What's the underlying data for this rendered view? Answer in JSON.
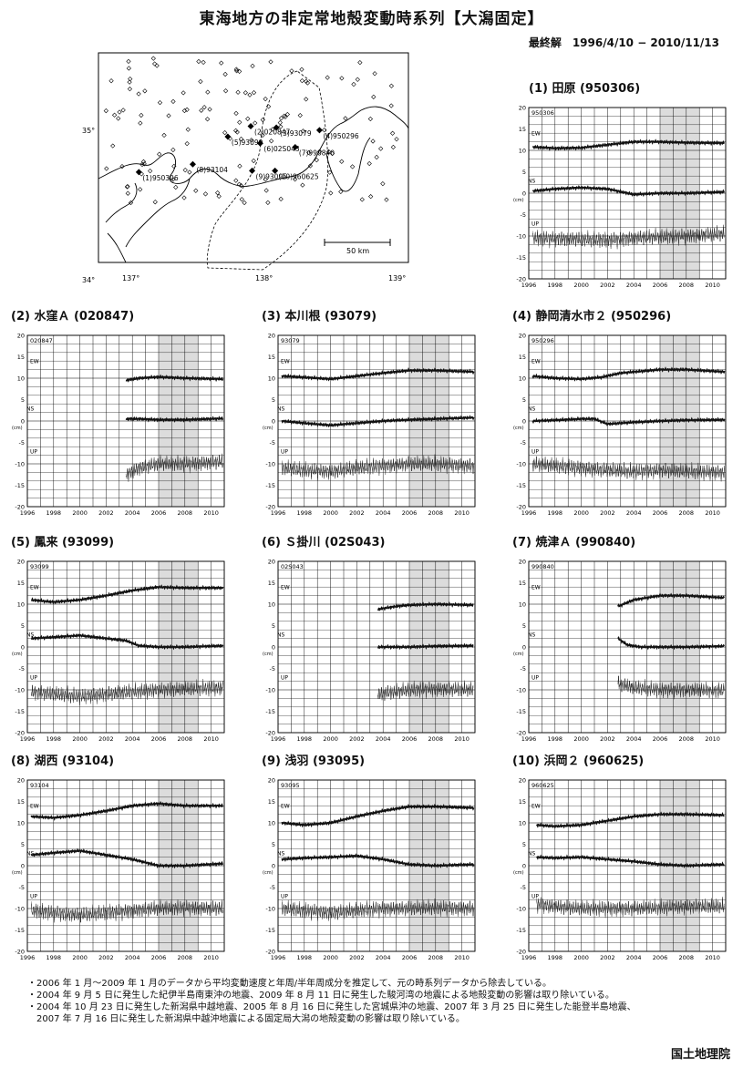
{
  "header": {
    "title": "東海地方の非定常地殻変動時系列【大潟固定】",
    "subtitle": "最終解　1996/4/10 − 2010/11/13"
  },
  "map": {
    "lat_labels": [
      "35°",
      "34°"
    ],
    "lon_labels": [
      "137°",
      "138°",
      "139°"
    ],
    "scale_label": "50 km",
    "stations": [
      {
        "label": "(1)950306",
        "lon": 137.1,
        "lat": 34.69
      },
      {
        "label": "(2)020847",
        "lon": 137.93,
        "lat": 35.04
      },
      {
        "label": "(3)93079",
        "lon": 138.12,
        "lat": 35.03
      },
      {
        "label": "(4)950296",
        "lon": 138.44,
        "lat": 35.01
      },
      {
        "label": "(5)93099",
        "lon": 137.76,
        "lat": 34.96
      },
      {
        "label": "(6)02S043",
        "lon": 138.0,
        "lat": 34.91
      },
      {
        "label": "(7)990840",
        "lon": 138.26,
        "lat": 34.88
      },
      {
        "label": "(8)93104",
        "lon": 137.5,
        "lat": 34.75
      },
      {
        "label": "(9)93095",
        "lon": 137.94,
        "lat": 34.7
      },
      {
        "label": "(10)960625",
        "lon": 138.11,
        "lat": 34.7
      }
    ]
  },
  "axis": {
    "ytick_labels": [
      "20",
      "15",
      "10",
      "5",
      "0",
      "-5",
      "-10",
      "-15",
      "-20"
    ],
    "xtick_labels": [
      "1996",
      "1998",
      "2000",
      "2002",
      "2004",
      "2006",
      "2008",
      "2010"
    ],
    "unit": "(cm)",
    "comp_labels": [
      "EW",
      "NS",
      "UP"
    ]
  },
  "chart_data": [
    {
      "type": "line",
      "title": "(1) 田原 (950306)",
      "station": "950306",
      "start": 1996.3,
      "xlim": [
        1996,
        2011
      ],
      "ylim": [
        -20,
        20
      ],
      "shaded": [
        2006,
        2009
      ],
      "series": [
        {
          "name": "EW",
          "x": [
            1996.3,
            1998,
            2000,
            2002,
            2004,
            2006,
            2008,
            2010.9
          ],
          "values": [
            10.8,
            10.5,
            10.6,
            11.3,
            12.0,
            12.0,
            11.8,
            11.7
          ]
        },
        {
          "name": "NS",
          "x": [
            1996.3,
            1998,
            2000,
            2002,
            2004,
            2006,
            2008,
            2010.9
          ],
          "values": [
            0.5,
            1.0,
            1.3,
            1.0,
            -0.3,
            0.0,
            0.0,
            0.3
          ]
        },
        {
          "name": "UP",
          "x": [
            1996.3,
            1998,
            2000,
            2002,
            2004,
            2006,
            2008,
            2010.9
          ],
          "values": [
            -10.5,
            -10.6,
            -10.8,
            -11.0,
            -10.5,
            -10.2,
            -10.0,
            -9.5
          ]
        }
      ]
    },
    {
      "type": "line",
      "title": "(2) 水窪Ａ (020847)",
      "station": "020847",
      "start": 2003.5,
      "xlim": [
        1996,
        2011
      ],
      "ylim": [
        -20,
        20
      ],
      "shaded": [
        2006,
        2009
      ],
      "series": [
        {
          "name": "EW",
          "x": [
            2003.5,
            2004.5,
            2006,
            2008,
            2010.9
          ],
          "values": [
            9.5,
            10.0,
            10.3,
            10.0,
            9.8
          ]
        },
        {
          "name": "NS",
          "x": [
            2003.5,
            2004.5,
            2006,
            2008,
            2010.9
          ],
          "values": [
            0.5,
            0.5,
            0.3,
            0.3,
            0.6
          ]
        },
        {
          "name": "UP",
          "x": [
            2003.5,
            2004.5,
            2006,
            2008,
            2010.9
          ],
          "values": [
            -12.5,
            -11.0,
            -10.0,
            -10.0,
            -9.5
          ]
        }
      ]
    },
    {
      "type": "line",
      "title": "(3) 本川根 (93079)",
      "station": "93079",
      "start": 1996.3,
      "xlim": [
        1996,
        2011
      ],
      "ylim": [
        -20,
        20
      ],
      "shaded": [
        2006,
        2009
      ],
      "series": [
        {
          "name": "EW",
          "x": [
            1996.3,
            1998,
            2000,
            2002,
            2004,
            2006,
            2008,
            2010.9
          ],
          "values": [
            10.5,
            10.2,
            9.8,
            10.5,
            11.2,
            11.8,
            11.8,
            11.5
          ]
        },
        {
          "name": "NS",
          "x": [
            1996.3,
            1998,
            2000,
            2002,
            2004,
            2006,
            2008,
            2010.9
          ],
          "values": [
            0.0,
            -0.5,
            -1.0,
            -0.5,
            0.0,
            0.3,
            0.5,
            0.8
          ]
        },
        {
          "name": "UP",
          "x": [
            1996.3,
            1998,
            2000,
            2002,
            2004,
            2006,
            2008,
            2010.9
          ],
          "values": [
            -11.0,
            -11.5,
            -11.8,
            -11.0,
            -10.5,
            -10.0,
            -10.0,
            -10.5
          ]
        }
      ]
    },
    {
      "type": "line",
      "title": "(4) 静岡清水市２ (950296)",
      "station": "950296",
      "start": 1996.3,
      "xlim": [
        1996,
        2011
      ],
      "ylim": [
        -20,
        20
      ],
      "shaded": [
        2006,
        2009
      ],
      "series": [
        {
          "name": "EW",
          "x": [
            1996.3,
            1998,
            2000,
            2001.5,
            2003,
            2006,
            2008,
            2010.9
          ],
          "values": [
            10.5,
            10.0,
            9.8,
            10.2,
            11.2,
            12.0,
            12.0,
            11.5
          ]
        },
        {
          "name": "NS",
          "x": [
            1996.3,
            1998,
            2000,
            2001,
            2002,
            2004,
            2006,
            2008,
            2010.9
          ],
          "values": [
            0.0,
            0.2,
            0.5,
            0.5,
            -0.7,
            -0.3,
            0.0,
            0.2,
            0.3
          ]
        },
        {
          "name": "UP",
          "x": [
            1996.3,
            1998,
            2000,
            2002,
            2004,
            2006,
            2008,
            2010.9
          ],
          "values": [
            -10.0,
            -10.5,
            -11.0,
            -11.5,
            -11.8,
            -11.5,
            -11.8,
            -12.0
          ]
        }
      ]
    },
    {
      "type": "line",
      "title": "(5) 鳳来 (93099)",
      "station": "93099",
      "start": 1996.3,
      "xlim": [
        1996,
        2011
      ],
      "ylim": [
        -20,
        20
      ],
      "shaded": [
        2006,
        2009
      ],
      "series": [
        {
          "name": "EW",
          "x": [
            1996.3,
            1998,
            2000,
            2002,
            2004,
            2006,
            2008,
            2010.9
          ],
          "values": [
            11.0,
            10.5,
            11.0,
            12.0,
            13.2,
            14.0,
            13.8,
            13.8
          ]
        },
        {
          "name": "NS",
          "x": [
            1996.3,
            1998,
            2000,
            2002,
            2003.5,
            2004.5,
            2006,
            2008,
            2010.9
          ],
          "values": [
            2.0,
            2.3,
            2.7,
            2.0,
            1.5,
            0.3,
            0.0,
            0.0,
            0.3
          ]
        },
        {
          "name": "UP",
          "x": [
            1996.3,
            1998,
            2000,
            2002,
            2004,
            2006,
            2008,
            2010.9
          ],
          "values": [
            -10.5,
            -11.0,
            -11.5,
            -11.0,
            -10.5,
            -10.0,
            -9.8,
            -9.5
          ]
        }
      ]
    },
    {
      "type": "line",
      "title": "(6) Ｓ掛川 (02S043)",
      "station": "02S043",
      "start": 2003.6,
      "xlim": [
        1996,
        2011
      ],
      "ylim": [
        -20,
        20
      ],
      "shaded": [
        2006,
        2009
      ],
      "series": [
        {
          "name": "EW",
          "x": [
            2003.6,
            2005,
            2006,
            2008,
            2010.9
          ],
          "values": [
            8.8,
            9.5,
            9.8,
            10.0,
            9.8
          ]
        },
        {
          "name": "NS",
          "x": [
            2003.6,
            2005,
            2006,
            2008,
            2010.9
          ],
          "values": [
            0.0,
            0.0,
            0.0,
            0.2,
            0.3
          ]
        },
        {
          "name": "UP",
          "x": [
            2003.6,
            2005,
            2006,
            2008,
            2010.9
          ],
          "values": [
            -11.0,
            -10.5,
            -10.0,
            -9.8,
            -10.0
          ]
        }
      ]
    },
    {
      "type": "line",
      "title": "(7) 焼津Ａ (990840)",
      "station": "990840",
      "start": 2002.8,
      "xlim": [
        1996,
        2011
      ],
      "ylim": [
        -20,
        20
      ],
      "shaded": [
        2006,
        2009
      ],
      "series": [
        {
          "name": "EW",
          "x": [
            2002.8,
            2004,
            2006,
            2008,
            2010.9
          ],
          "values": [
            9.5,
            11.0,
            12.0,
            12.0,
            11.5
          ]
        },
        {
          "name": "NS",
          "x": [
            2002.8,
            2003.5,
            2004.5,
            2006,
            2008,
            2010.9
          ],
          "values": [
            2.0,
            0.5,
            0.0,
            0.0,
            0.0,
            0.2
          ]
        },
        {
          "name": "UP",
          "x": [
            2002.8,
            2004,
            2006,
            2008,
            2010.9
          ],
          "values": [
            -8.5,
            -9.5,
            -10.0,
            -10.0,
            -10.2
          ]
        }
      ]
    },
    {
      "type": "line",
      "title": "(8) 湖西 (93104)",
      "station": "93104",
      "start": 1996.3,
      "xlim": [
        1996,
        2011
      ],
      "ylim": [
        -20,
        20
      ],
      "shaded": [
        2006,
        2009
      ],
      "series": [
        {
          "name": "EW",
          "x": [
            1996.3,
            1998,
            2000,
            2002,
            2004,
            2006,
            2008,
            2010.9
          ],
          "values": [
            11.5,
            11.2,
            11.8,
            12.8,
            14.0,
            14.5,
            14.0,
            14.0
          ]
        },
        {
          "name": "NS",
          "x": [
            1996.3,
            1998,
            2000,
            2002,
            2004,
            2006,
            2008,
            2010.9
          ],
          "values": [
            2.5,
            3.0,
            3.5,
            2.5,
            1.5,
            0.0,
            0.0,
            0.5
          ]
        },
        {
          "name": "UP",
          "x": [
            1996.3,
            1998,
            2000,
            2002,
            2004,
            2006,
            2008,
            2010.9
          ],
          "values": [
            -10.5,
            -11.0,
            -11.5,
            -11.0,
            -10.5,
            -10.0,
            -9.8,
            -10.0
          ]
        }
      ]
    },
    {
      "type": "line",
      "title": "(9) 浅羽 (93095)",
      "station": "93095",
      "start": 1996.3,
      "xlim": [
        1996,
        2011
      ],
      "ylim": [
        -20,
        20
      ],
      "shaded": [
        2006,
        2009
      ],
      "series": [
        {
          "name": "EW",
          "x": [
            1996.3,
            1998,
            2000,
            2002,
            2004,
            2006,
            2008,
            2010.9
          ],
          "values": [
            10.0,
            9.5,
            10.0,
            11.5,
            12.8,
            13.8,
            13.8,
            13.5
          ]
        },
        {
          "name": "NS",
          "x": [
            1996.3,
            1998,
            2000,
            2002,
            2004,
            2006,
            2008,
            2010.9
          ],
          "values": [
            1.5,
            1.8,
            2.0,
            2.3,
            1.5,
            0.3,
            0.0,
            0.3
          ]
        },
        {
          "name": "UP",
          "x": [
            1996.3,
            1998,
            2000,
            2002,
            2004,
            2006,
            2008,
            2010.9
          ],
          "values": [
            -10.0,
            -10.5,
            -11.0,
            -10.5,
            -10.0,
            -10.0,
            -9.8,
            -10.0
          ]
        }
      ]
    },
    {
      "type": "line",
      "title": "(10) 浜岡２ (960625)",
      "station": "960625",
      "start": 1996.6,
      "xlim": [
        1996,
        2011
      ],
      "ylim": [
        -20,
        20
      ],
      "shaded": [
        2006,
        2009
      ],
      "series": [
        {
          "name": "EW",
          "x": [
            1996.6,
            1998,
            2000,
            2002,
            2004,
            2006,
            2008,
            2010.9
          ],
          "values": [
            9.5,
            9.2,
            9.5,
            10.5,
            11.5,
            12.0,
            12.0,
            11.8
          ]
        },
        {
          "name": "NS",
          "x": [
            1996.6,
            1998,
            2000,
            2002,
            2004,
            2006,
            2008,
            2010.9
          ],
          "values": [
            2.0,
            1.8,
            2.0,
            1.5,
            1.0,
            0.3,
            0.0,
            0.3
          ]
        },
        {
          "name": "UP",
          "x": [
            1996.6,
            1998,
            2000,
            2002,
            2004,
            2006,
            2008,
            2010.9
          ],
          "values": [
            -9.0,
            -9.5,
            -10.0,
            -10.0,
            -10.0,
            -9.8,
            -9.5,
            -9.5
          ]
        }
      ]
    }
  ],
  "notes": [
    "・2006 年 1 月〜2009 年 1 月のデータから平均変動速度と年周/半年周成分を推定して、元の時系列データから除去している。",
    "・2004 年 9 月 5 日に発生した紀伊半島南東沖の地震、2009 年 8 月 11 日に発生した駿河湾の地震による地殻変動の影響は取り除いている。",
    "・2004 年 10 月 23 日に発生した新潟県中越地震、2005 年 8 月 16 日に発生した宮城県沖の地震、2007 年 3 月 25 日に発生した能登半島地震、",
    "　2007 年 7 月 16 日に発生した新潟県中越沖地震による固定局大潟の地殻変動の影響は取り除いている。"
  ],
  "footer": {
    "org": "国土地理院"
  }
}
